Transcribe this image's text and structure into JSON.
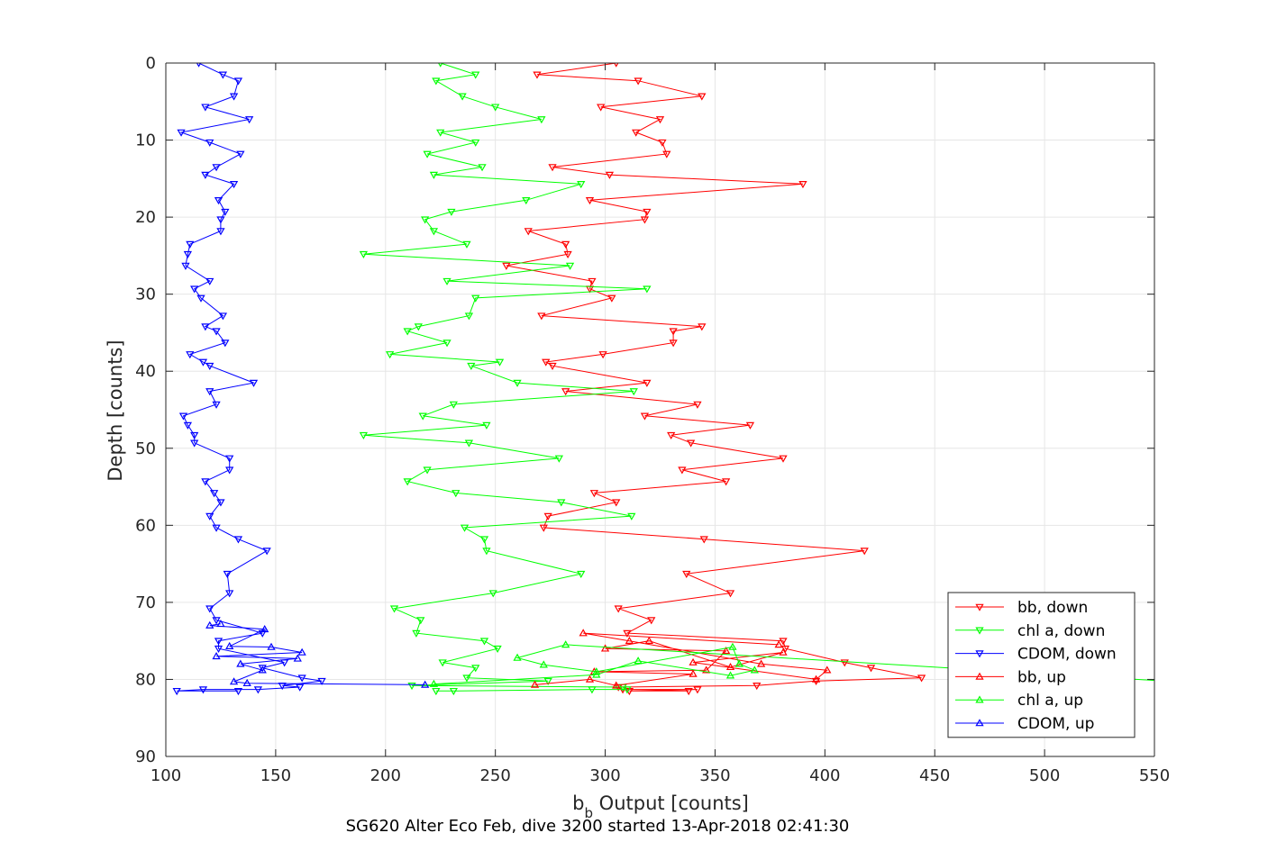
{
  "chart_data": {
    "type": "line",
    "xlabel_base": "b",
    "xlabel_sub": "b",
    "xlabel_rest": " Output [counts]",
    "ylabel": "Depth [counts]",
    "caption": "SG620 Alter Eco Feb, dive 3200 started 13-Apr-2018 02:41:30",
    "xlim": [
      100,
      550
    ],
    "ylim": [
      0,
      90
    ],
    "y_reversed": true,
    "grid": true,
    "legend_position": "bottom-right",
    "xticks": [
      100,
      150,
      200,
      250,
      300,
      350,
      400,
      450,
      500,
      550
    ],
    "yticks": [
      0,
      10,
      20,
      30,
      40,
      50,
      60,
      70,
      80,
      90
    ],
    "series": [
      {
        "name": "bb, down",
        "color": "#ff0000",
        "marker": "down",
        "x": [
          305,
          269,
          315,
          344,
          298,
          325,
          314,
          326,
          328,
          276,
          302,
          390,
          293,
          319,
          318,
          265,
          282,
          283,
          255,
          294,
          293,
          303,
          271,
          344,
          331,
          331,
          299,
          273,
          276,
          319,
          282,
          342,
          318,
          366,
          330,
          339,
          381,
          335,
          355,
          295,
          305,
          274,
          272,
          345,
          418,
          337,
          357,
          306,
          321,
          310,
          381,
          382,
          409,
          421,
          444,
          396,
          369,
          306,
          308,
          342,
          311,
          338
        ],
        "y": [
          0,
          1.5,
          2.3,
          4.3,
          5.7,
          7.3,
          9.0,
          10.3,
          11.8,
          13.5,
          14.5,
          15.7,
          17.8,
          19.3,
          20.3,
          21.8,
          23.5,
          24.8,
          26.3,
          28.3,
          29.3,
          30.5,
          32.8,
          34.2,
          34.8,
          36.3,
          37.8,
          38.8,
          39.3,
          41.5,
          42.6,
          44.3,
          45.8,
          47.0,
          48.3,
          49.3,
          51.3,
          52.8,
          54.3,
          55.8,
          57.0,
          58.8,
          60.3,
          61.8,
          63.3,
          66.3,
          68.8,
          70.8,
          72.3,
          74.0,
          75.0,
          76.0,
          77.8,
          78.5,
          79.8,
          80.2,
          80.8,
          81.0,
          81.3,
          81.3,
          81.5,
          81.5
        ]
      },
      {
        "name": "chl a, down",
        "color": "#00ff00",
        "marker": "down",
        "x": [
          225,
          241,
          223,
          235,
          250,
          271,
          225,
          241,
          219,
          244,
          222,
          289,
          264,
          230,
          218,
          222,
          237,
          190,
          284,
          228,
          319,
          241,
          238,
          215,
          210,
          228,
          202,
          252,
          239,
          260,
          313,
          231,
          217,
          246,
          190,
          238,
          279,
          219,
          210,
          232,
          280,
          312,
          236,
          245,
          246,
          289,
          249,
          204,
          216,
          214,
          245,
          251,
          226,
          241,
          237,
          274,
          212,
          308,
          310,
          294,
          231,
          223
        ],
        "y": [
          0,
          1.5,
          2.3,
          4.3,
          5.7,
          7.3,
          9.0,
          10.3,
          11.8,
          13.5,
          14.5,
          15.7,
          17.8,
          19.3,
          20.3,
          21.8,
          23.5,
          24.8,
          26.3,
          28.3,
          29.3,
          30.5,
          32.8,
          34.2,
          34.8,
          36.3,
          37.8,
          38.8,
          39.3,
          41.5,
          42.6,
          44.3,
          45.8,
          47.0,
          48.3,
          49.3,
          51.3,
          52.8,
          54.3,
          55.8,
          57.0,
          58.8,
          60.3,
          61.8,
          63.3,
          66.3,
          68.8,
          70.8,
          72.3,
          74.0,
          75.0,
          76.0,
          77.8,
          78.5,
          79.8,
          80.2,
          80.8,
          81.0,
          81.3,
          81.3,
          81.5,
          81.5
        ]
      },
      {
        "name": "CDOM, down",
        "color": "#0000ff",
        "marker": "down",
        "x": [
          115,
          126,
          133,
          131,
          118,
          138,
          107,
          120,
          134,
          123,
          118,
          131,
          124,
          127,
          125,
          125,
          111,
          110,
          109,
          120,
          113,
          116,
          126,
          118,
          123,
          127,
          111,
          117,
          120,
          140,
          120,
          123,
          108,
          110,
          113,
          113,
          129,
          129,
          118,
          122,
          125,
          120,
          123,
          133,
          146,
          128,
          129,
          120,
          123,
          144,
          124,
          124,
          154,
          144,
          162,
          171,
          153,
          161,
          142,
          117,
          105,
          133
        ],
        "y": [
          0,
          1.5,
          2.3,
          4.3,
          5.7,
          7.3,
          9.0,
          10.3,
          11.8,
          13.5,
          14.5,
          15.7,
          17.8,
          19.3,
          20.3,
          21.8,
          23.5,
          24.8,
          26.3,
          28.3,
          29.3,
          30.5,
          32.8,
          34.2,
          34.8,
          36.3,
          37.8,
          38.8,
          39.3,
          41.5,
          42.6,
          44.3,
          45.8,
          47.0,
          48.3,
          49.3,
          51.3,
          52.8,
          54.3,
          55.8,
          57.0,
          58.8,
          60.3,
          61.8,
          63.3,
          66.3,
          68.8,
          70.8,
          72.3,
          74.0,
          75.0,
          76.0,
          77.8,
          78.5,
          79.8,
          80.2,
          80.8,
          81.0,
          81.3,
          81.3,
          81.5,
          81.5
        ]
      },
      {
        "name": "bb, up",
        "color": "#ff0000",
        "marker": "up",
        "x": [
          268,
          293,
          305,
          340,
          295,
          346,
          355,
          300,
          320,
          357,
          381,
          340,
          396,
          401,
          371,
          311,
          290,
          379
        ],
        "y": [
          80.7,
          80.0,
          80.8,
          79.3,
          79.0,
          78.8,
          76.3,
          76.0,
          75.0,
          78.4,
          76.5,
          77.8,
          80.0,
          78.8,
          78.0,
          75.0,
          74.0,
          75.5
        ]
      },
      {
        "name": "chl a, up",
        "color": "#00ff00",
        "marker": "up",
        "x": [
          222,
          296,
          315,
          357,
          368,
          361,
          358,
          296,
          272,
          260,
          282,
          600
        ],
        "y": [
          80.6,
          79.4,
          77.6,
          79.5,
          78.8,
          78.0,
          75.8,
          79.0,
          78.1,
          77.2,
          75.5,
          81.0
        ]
      },
      {
        "name": "CDOM, up",
        "color": "#0000ff",
        "marker": "up",
        "x": [
          218,
          137,
          131,
          144,
          134,
          160,
          123,
          162,
          148,
          129,
          145,
          120,
          125
        ],
        "y": [
          80.7,
          80.5,
          80.3,
          78.8,
          78.0,
          77.3,
          77.0,
          76.5,
          75.8,
          75.7,
          73.5,
          73.0,
          72.8
        ]
      }
    ]
  }
}
